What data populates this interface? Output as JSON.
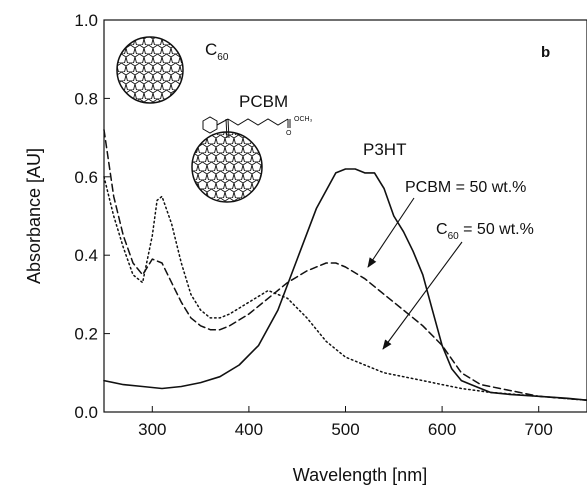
{
  "chart_data": {
    "type": "line",
    "panel_label": "b",
    "xlabel": "Wavelength [nm]",
    "ylabel": "Absorbance [AU]",
    "xlim": [
      250,
      750
    ],
    "ylim": [
      0.0,
      1.0
    ],
    "x_ticks": [
      300,
      400,
      500,
      600,
      700
    ],
    "y_ticks": [
      0.0,
      0.2,
      0.4,
      0.6,
      0.8,
      1.0
    ],
    "x_tick_labels": [
      "300",
      "400",
      "500",
      "600",
      "700"
    ],
    "y_tick_labels": [
      "0.0",
      "0.2",
      "0.4",
      "0.6",
      "0.8",
      "1.0"
    ],
    "grid": false,
    "molecule_labels": {
      "c60_main": "C",
      "c60_sub": "60",
      "pcbm": "PCBM",
      "pcbm_group": "OCH₃",
      "pcbm_o": "O"
    },
    "annotations": {
      "p3ht": "P3HT",
      "pcbm_blend": "PCBM = 50 wt.%",
      "c60_blend_main": "C",
      "c60_blend_sub": "60",
      "c60_blend_rest": " = 50 wt.%"
    },
    "series": [
      {
        "id": "p3ht",
        "style": "solid",
        "x": [
          250,
          270,
          290,
          310,
          330,
          350,
          370,
          390,
          410,
          430,
          450,
          470,
          490,
          500,
          510,
          520,
          530,
          540,
          550,
          560,
          570,
          580,
          590,
          600,
          610,
          620,
          630,
          640,
          650,
          670,
          700,
          730,
          750
        ],
        "y": [
          0.08,
          0.07,
          0.065,
          0.06,
          0.065,
          0.075,
          0.09,
          0.12,
          0.17,
          0.26,
          0.39,
          0.52,
          0.61,
          0.62,
          0.62,
          0.61,
          0.61,
          0.57,
          0.5,
          0.46,
          0.41,
          0.35,
          0.26,
          0.17,
          0.11,
          0.08,
          0.07,
          0.06,
          0.05,
          0.045,
          0.04,
          0.035,
          0.03
        ]
      },
      {
        "id": "pcbm_50",
        "style": "dashed",
        "x": [
          250,
          260,
          270,
          280,
          290,
          300,
          310,
          320,
          330,
          340,
          350,
          360,
          370,
          380,
          400,
          420,
          440,
          460,
          480,
          490,
          500,
          520,
          540,
          560,
          580,
          600,
          620,
          640,
          660,
          680,
          700,
          750
        ],
        "y": [
          0.72,
          0.55,
          0.45,
          0.38,
          0.35,
          0.39,
          0.38,
          0.33,
          0.28,
          0.24,
          0.22,
          0.21,
          0.21,
          0.22,
          0.25,
          0.29,
          0.33,
          0.36,
          0.38,
          0.38,
          0.37,
          0.34,
          0.3,
          0.26,
          0.22,
          0.17,
          0.1,
          0.07,
          0.06,
          0.05,
          0.04,
          0.03
        ]
      },
      {
        "id": "c60_50",
        "style": "dotted",
        "x": [
          250,
          260,
          270,
          280,
          290,
          300,
          305,
          310,
          320,
          330,
          340,
          350,
          360,
          370,
          380,
          400,
          420,
          440,
          460,
          480,
          500,
          520,
          540,
          560,
          580,
          600,
          620,
          650,
          700,
          750
        ],
        "y": [
          0.6,
          0.5,
          0.42,
          0.35,
          0.33,
          0.45,
          0.54,
          0.55,
          0.48,
          0.38,
          0.3,
          0.26,
          0.24,
          0.24,
          0.25,
          0.28,
          0.31,
          0.29,
          0.24,
          0.18,
          0.14,
          0.12,
          0.1,
          0.09,
          0.08,
          0.07,
          0.06,
          0.05,
          0.04,
          0.03
        ]
      }
    ]
  }
}
